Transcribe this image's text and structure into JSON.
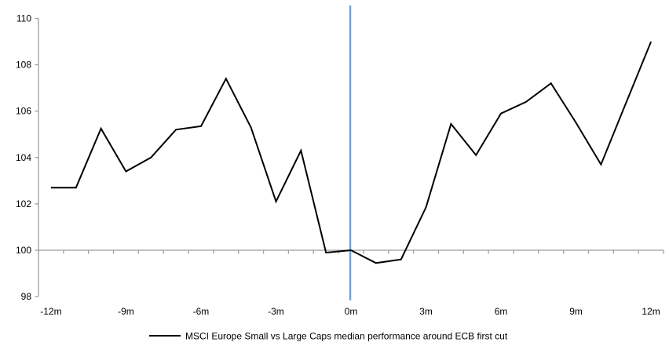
{
  "chart_data": {
    "type": "line",
    "title": "",
    "xlabel": "",
    "ylabel": "",
    "x_months": [
      -12,
      -11,
      -10,
      -9,
      -8,
      -7,
      -6,
      -5,
      -4,
      -3,
      -2,
      -1,
      0,
      1,
      2,
      3,
      4,
      5,
      6,
      7,
      8,
      9,
      10,
      11,
      12
    ],
    "series": [
      {
        "name": "MSCI Europe Small vs Large Caps median performance around ECB first cut",
        "color": "#000000",
        "values": [
          102.7,
          102.7,
          105.25,
          103.4,
          104.0,
          105.2,
          105.35,
          107.4,
          105.3,
          102.1,
          104.3,
          99.9,
          100.0,
          99.45,
          99.6,
          101.85,
          105.45,
          104.1,
          105.9,
          106.4,
          107.2,
          105.5,
          103.7,
          106.35,
          109.0
        ]
      }
    ],
    "ylim": [
      98,
      110
    ],
    "y_ticks": [
      98,
      100,
      102,
      104,
      106,
      108,
      110
    ],
    "x_tick_months": [
      -12,
      -9,
      -6,
      -3,
      0,
      3,
      6,
      9,
      12
    ],
    "x_tick_labels": [
      "-12m",
      "-9m",
      "-6m",
      "-3m",
      "0m",
      "3m",
      "6m",
      "9m",
      "12m"
    ],
    "x_axis_crosses_at": 100,
    "grid": false,
    "legend_position": "bottom-center",
    "event_line": {
      "month": 0,
      "color": "#74A3D4"
    },
    "colors": {
      "series_line": "#000000",
      "event_line": "#74A3D4",
      "axis": "#9E9E9E",
      "text": "#000000",
      "background": "#FFFFFF"
    }
  },
  "legend": {
    "label": "MSCI Europe Small vs Large Caps median performance around ECB first cut"
  }
}
